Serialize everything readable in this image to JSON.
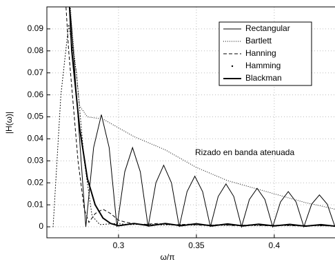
{
  "chart_data": {
    "type": "line",
    "xlabel": "ω/π",
    "ylabel": "|H(ω)|",
    "annotation": "Rizado en banda atenuada",
    "xlim": [
      0.254,
      0.439
    ],
    "ylim": [
      -0.005,
      0.1
    ],
    "xticks": [
      0.3,
      0.35,
      0.4
    ],
    "yticks": [
      0,
      0.01,
      0.02,
      0.03,
      0.04,
      0.05,
      0.06,
      0.07,
      0.08,
      0.09
    ],
    "grid": true,
    "legend": "upper right",
    "series": [
      {
        "name": "Rectangular",
        "color": "#000000",
        "style": "solid",
        "width": 1,
        "x": [
          0.262,
          0.27,
          0.275,
          0.279,
          0.284,
          0.289,
          0.294,
          0.299,
          0.304,
          0.309,
          0.314,
          0.319,
          0.324,
          0.329,
          0.334,
          0.339,
          0.344,
          0.349,
          0.354,
          0.359,
          0.364,
          0.369,
          0.374,
          0.379,
          0.384,
          0.389,
          0.394,
          0.399,
          0.404,
          0.409,
          0.414,
          0.419,
          0.424,
          0.429,
          0.434,
          0.439
        ],
        "values": [
          0.15,
          0.09,
          0.04,
          0,
          0.036,
          0.051,
          0.036,
          0,
          0.025,
          0.036,
          0.025,
          0,
          0.02,
          0.028,
          0.02,
          0,
          0.016,
          0.023,
          0.016,
          0,
          0.0138,
          0.0195,
          0.0138,
          0,
          0.0124,
          0.0175,
          0.0124,
          0,
          0.0113,
          0.016,
          0.0113,
          0,
          0.0103,
          0.0145,
          0.0103,
          0
        ]
      },
      {
        "name": "Bartlett",
        "color": "#000000",
        "style": "dotted",
        "width": 1,
        "x": [
          0.265,
          0.27,
          0.275,
          0.28,
          0.29,
          0.3,
          0.31,
          0.32,
          0.33,
          0.34,
          0.35,
          0.36,
          0.37,
          0.38,
          0.39,
          0.4,
          0.41,
          0.42,
          0.43,
          0.439
        ],
        "values": [
          0.15,
          0.09,
          0.055,
          0.05,
          0.049,
          0.045,
          0.041,
          0.038,
          0.035,
          0.031,
          0.027,
          0.024,
          0.021,
          0.019,
          0.017,
          0.015,
          0.013,
          0.011,
          0.0095,
          0.008
        ]
      },
      {
        "name": "Hanning",
        "color": "#000000",
        "style": "dashed",
        "width": 1,
        "x": [
          0.262,
          0.268,
          0.274,
          0.278,
          0.281,
          0.285,
          0.29,
          0.295,
          0.3,
          0.305,
          0.315,
          0.325,
          0.335,
          0.345,
          0.355,
          0.365,
          0.375,
          0.385,
          0.395,
          0.405,
          0.415,
          0.425,
          0.435
        ],
        "values": [
          0.15,
          0.08,
          0.03,
          0.008,
          0.002,
          0.006,
          0.008,
          0.006,
          0.003,
          0.002,
          0.001,
          0.0015,
          0.0008,
          0.0012,
          0.0006,
          0.001,
          0.0005,
          0.0009,
          0.0005,
          0.0008,
          0.0004,
          0.0007,
          0.0004
        ]
      },
      {
        "name": "Hamming",
        "color": "#000000",
        "style": "dots",
        "width": 1,
        "x": [
          0.258,
          0.263,
          0.268,
          0.273,
          0.278,
          0.283,
          0.288,
          0.298,
          0.308,
          0.318,
          0.328,
          0.338,
          0.348,
          0.358,
          0.368,
          0.378,
          0.388,
          0.398,
          0.408,
          0.418,
          0.428,
          0.438
        ],
        "values": [
          0,
          0.06,
          0.092,
          0.07,
          0.03,
          0.005,
          0.001,
          0.0015,
          0.001,
          0.0012,
          0.0008,
          0.001,
          0.0007,
          0.0009,
          0.0006,
          0.0008,
          0.0005,
          0.0007,
          0.0005,
          0.0006,
          0.0004,
          0.0005
        ]
      },
      {
        "name": "Blackman",
        "color": "#000000",
        "style": "solid",
        "width": 2,
        "x": [
          0.265,
          0.27,
          0.275,
          0.28,
          0.285,
          0.29,
          0.295,
          0.3,
          0.31,
          0.32,
          0.33,
          0.34,
          0.35,
          0.36,
          0.37,
          0.38,
          0.39,
          0.4,
          0.41,
          0.42,
          0.43,
          0.439
        ],
        "values": [
          0.15,
          0.08,
          0.045,
          0.022,
          0.01,
          0.004,
          0.0015,
          0.0005,
          0.0015,
          0.0005,
          0.0015,
          0.0005,
          0.0014,
          0.0004,
          0.0013,
          0.0004,
          0.0012,
          0.0004,
          0.0011,
          0.0003,
          0.001,
          0.0003
        ]
      }
    ]
  }
}
